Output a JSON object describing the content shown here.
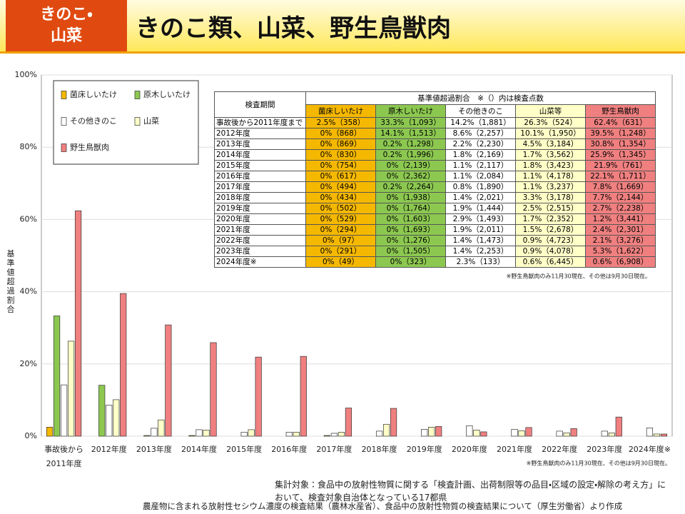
{
  "header": {
    "badge": [
      "きのこ・",
      "山菜"
    ],
    "title": "きのこ類、山菜、野生鳥獣肉"
  },
  "chart_data": {
    "type": "bar",
    "y_label": "基準値超過割合",
    "categories": [
      "事故後から\n2011年度",
      "2012年度",
      "2013年度",
      "2014年度",
      "2015年度",
      "2016年度",
      "2017年度",
      "2018年度",
      "2019年度",
      "2020年度",
      "2021年度",
      "2022年度",
      "2023年度",
      "2024年度※"
    ],
    "series": [
      {
        "name": "菌床しいたけ",
        "color": "#f5b800",
        "values": [
          2.5,
          0,
          0,
          0,
          0,
          0,
          0,
          0,
          0,
          0,
          0,
          0,
          0,
          0
        ]
      },
      {
        "name": "原木しいたけ",
        "color": "#8cc850",
        "values": [
          33.3,
          14.1,
          0.2,
          0.2,
          0,
          0,
          0.2,
          0,
          0,
          0,
          0,
          0,
          0,
          0
        ]
      },
      {
        "name": "その他きのこ",
        "color": "#ffffff",
        "values": [
          14.2,
          8.6,
          2.2,
          1.8,
          1.1,
          1.1,
          0.8,
          1.4,
          1.9,
          2.9,
          1.9,
          1.4,
          1.4,
          2.3
        ]
      },
      {
        "name": "山菜",
        "color": "#ffffc8",
        "values": [
          26.3,
          10.1,
          4.5,
          1.7,
          1.8,
          1.1,
          1.1,
          3.3,
          2.5,
          1.7,
          1.5,
          0.9,
          0.9,
          0.6
        ]
      },
      {
        "name": "野生鳥獣肉",
        "color": "#f08080",
        "values": [
          62.4,
          39.5,
          30.8,
          25.9,
          21.9,
          22.1,
          7.8,
          7.7,
          2.7,
          1.2,
          2.4,
          2.1,
          5.3,
          0.6
        ]
      }
    ],
    "ylim": [
      0,
      100
    ],
    "yticks": [
      {
        "value": 0,
        "label": "0%"
      },
      {
        "value": 20,
        "label": "20%"
      },
      {
        "value": 40,
        "label": "40%"
      },
      {
        "value": 60,
        "label": "60%"
      },
      {
        "value": 80,
        "label": "80%"
      },
      {
        "value": 100,
        "label": "100%"
      }
    ],
    "grid": true,
    "footnote": "※野生鳥獣肉のみ11月30現在、その他は9月30日現在。"
  },
  "table": {
    "period_header": "検査期間",
    "group_header": "基準値超過割合　※（）内は検査点数",
    "columns": [
      "菌床しいたけ",
      "原木しいたけ",
      "その他きのこ",
      "山菜等",
      "野生鳥獣肉"
    ],
    "rows": [
      [
        "事故後から2011年度まで",
        "2.5%（358）",
        "33.3%（1,093）",
        "14.2%（1,881）",
        "26.3%（524）",
        "62.4%（631）"
      ],
      [
        "2012年度",
        "0%（868）",
        "14.1%（1,513）",
        "8.6%（2,257）",
        "10.1%（1,950）",
        "39.5%（1,248）"
      ],
      [
        "2013年度",
        "0%（869）",
        "0.2%（1,298）",
        "2.2%（2,230）",
        "4.5%（3,184）",
        "30.8%（1,354）"
      ],
      [
        "2014年度",
        "0%（830）",
        "0.2%（1,996）",
        "1.8%（2,169）",
        "1.7%（3,562）",
        "25.9%（1,345）"
      ],
      [
        "2015年度",
        "0%（754）",
        "0%（2,139）",
        "1.1%（2,117）",
        "1.8%（3,423）",
        "21.9%（761）"
      ],
      [
        "2016年度",
        "0%（617）",
        "0%（2,362）",
        "1.1%（2,084）",
        "1.1%（4,178）",
        "22.1%（1,711）"
      ],
      [
        "2017年度",
        "0%（494）",
        "0.2%（2,264）",
        "0.8%（1,890）",
        "1.1%（3,237）",
        "7.8%（1,669）"
      ],
      [
        "2018年度",
        "0%（434）",
        "0%（1,938）",
        "1.4%（2,021）",
        "3.3%（3,178）",
        "7.7%（2,144）"
      ],
      [
        "2019年度",
        "0%（502）",
        "0%（1,764）",
        "1.9%（1,444）",
        "2.5%（2,515）",
        "2.7%（2,238）"
      ],
      [
        "2020年度",
        "0%（529）",
        "0%（1,603）",
        "2.9%（1,493）",
        "1.7%（2,352）",
        "1.2%（3,441）"
      ],
      [
        "2021年度",
        "0%（294）",
        "0%（1,693）",
        "1.9%（2,011）",
        "1.5%（2,678）",
        "2.4%（2,301）"
      ],
      [
        "2022年度",
        "0%（97）",
        "0%（1,276）",
        "1.4%（1,473）",
        "0.9%（4,723）",
        "2.1%（3,276）"
      ],
      [
        "2023年度",
        "0%（291）",
        "0%（1,505）",
        "1.4%（2,253）",
        "0.9%（4,078）",
        "5.3%（1,622）"
      ],
      [
        "2024年度※",
        "0%（49）",
        "0%（323）",
        "2.3%（133）",
        "0.6%（6,445）",
        "0.6%（6,908）"
      ]
    ],
    "note": "※野生鳥獣肉のみ11月30現在、その他は9月30日現在。"
  },
  "footer": {
    "scope": "集計対象：食品中の放射性物質に関する「検査計画、出荷制限等の品目・区域の設定・解除の考え方」において、検査対象自治体となっている17都県",
    "source": "農産物に含まれる放射性セシウム濃度の検査結果（農林水産省）、食品中の放射性物質の検査結果について（厚生労働省）より作成"
  }
}
